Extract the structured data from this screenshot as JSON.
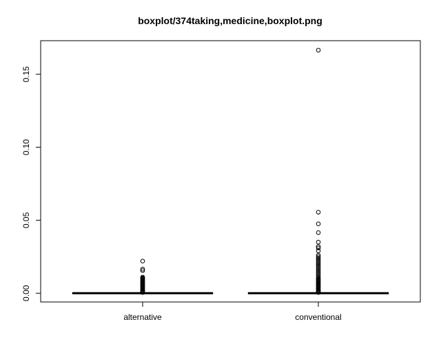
{
  "chart_data": {
    "type": "boxplot",
    "title": "boxplot/374taking,medicine,boxplot.png",
    "xlabel": "",
    "ylabel": "",
    "categories": [
      "alternative",
      "conventional"
    ],
    "ylim": [
      -0.006,
      0.173
    ],
    "yticks": [
      0.0,
      0.05,
      0.1,
      0.15
    ],
    "ytick_labels": [
      "0.00",
      "0.05",
      "0.10",
      "0.15"
    ],
    "grid": false,
    "series": [
      {
        "category": "alternative",
        "min": 0,
        "q1": 0,
        "median": 0,
        "q3": 0,
        "max": 0,
        "outliers": [
          0.0005,
          0.001,
          0.0015,
          0.002,
          0.0025,
          0.003,
          0.0035,
          0.004,
          0.0045,
          0.005,
          0.0055,
          0.006,
          0.0065,
          0.007,
          0.0075,
          0.008,
          0.0085,
          0.009,
          0.0095,
          0.01,
          0.0105,
          0.011,
          0.0155,
          0.0165,
          0.022
        ]
      },
      {
        "category": "conventional",
        "min": 0,
        "q1": 0,
        "median": 0,
        "q3": 0,
        "max": 0,
        "outliers": [
          0.0005,
          0.001,
          0.0015,
          0.002,
          0.0025,
          0.003,
          0.0035,
          0.004,
          0.0045,
          0.005,
          0.0055,
          0.006,
          0.0065,
          0.007,
          0.0075,
          0.008,
          0.0085,
          0.009,
          0.0095,
          0.01,
          0.011,
          0.012,
          0.013,
          0.014,
          0.015,
          0.016,
          0.017,
          0.018,
          0.019,
          0.02,
          0.021,
          0.022,
          0.023,
          0.024,
          0.025,
          0.026,
          0.029,
          0.031,
          0.032,
          0.035,
          0.0415,
          0.0475,
          0.0555,
          0.1665
        ]
      }
    ]
  }
}
